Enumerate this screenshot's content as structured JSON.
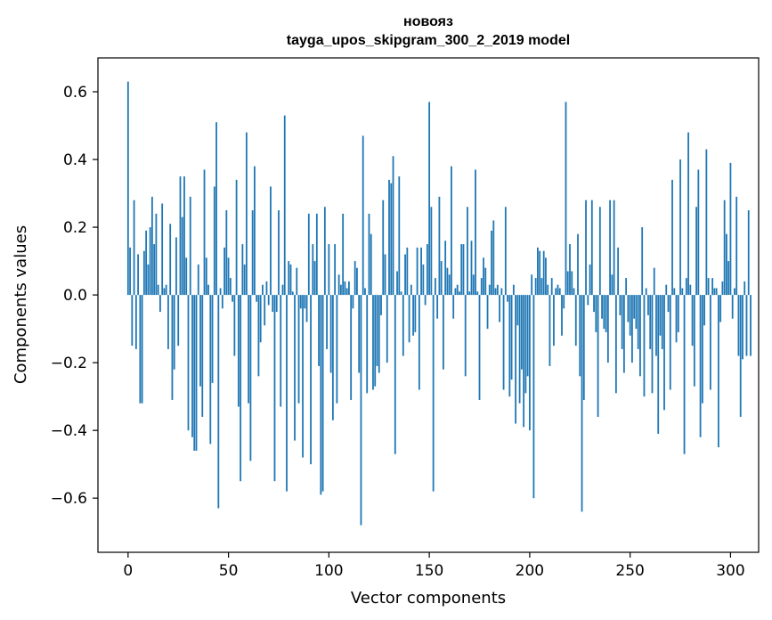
{
  "chart_data": {
    "type": "bar",
    "title": "новояз",
    "subtitle": "tayga_upos_skipgram_300_2_2019 model",
    "xlabel": "Vector components",
    "ylabel": "Components values",
    "xlim": [
      -15,
      314
    ],
    "ylim": [
      -0.76,
      0.7
    ],
    "xticks": [
      0,
      50,
      100,
      150,
      200,
      250,
      300
    ],
    "xtick_labels": [
      "0",
      "50",
      "100",
      "150",
      "200",
      "250",
      "300"
    ],
    "yticks": [
      -0.6,
      -0.4,
      -0.2,
      0.0,
      0.2,
      0.4,
      0.6
    ],
    "ytick_labels": [
      "−0.6",
      "−0.4",
      "−0.2",
      "0.0",
      "0.2",
      "0.4",
      "0.6"
    ],
    "bar_color": "#1f77b4",
    "grid": false,
    "values": [
      0.63,
      0.14,
      -0.15,
      0.28,
      -0.16,
      0.12,
      -0.32,
      -0.32,
      0.13,
      0.19,
      0.09,
      0.2,
      0.29,
      0.15,
      0.24,
      0.03,
      -0.05,
      0.27,
      0.02,
      0.03,
      -0.16,
      0.21,
      -0.31,
      -0.22,
      0.17,
      -0.15,
      0.35,
      0.23,
      0.35,
      0.11,
      -0.4,
      0.29,
      -0.42,
      -0.46,
      -0.46,
      0.09,
      -0.27,
      -0.36,
      0.37,
      0.11,
      0.03,
      -0.44,
      -0.26,
      0.32,
      0.51,
      -0.63,
      0.02,
      -0.04,
      0.14,
      0.25,
      0.11,
      0.05,
      -0.02,
      -0.18,
      0.34,
      -0.33,
      -0.55,
      0.15,
      0.09,
      0.48,
      -0.32,
      -0.49,
      0.25,
      0.38,
      -0.02,
      -0.24,
      -0.14,
      0.03,
      -0.09,
      0.04,
      -0.03,
      0.32,
      -0.05,
      -0.55,
      -0.05,
      0.25,
      -0.33,
      0.03,
      0.53,
      -0.58,
      0.1,
      0.09,
      0.01,
      -0.43,
      0.08,
      -0.32,
      -0.04,
      -0.48,
      -0.04,
      -0.08,
      0.24,
      -0.5,
      0.15,
      0.1,
      0.24,
      -0.21,
      -0.59,
      -0.58,
      0.26,
      -0.16,
      0.15,
      -0.23,
      -0.37,
      0.15,
      -0.32,
      0.06,
      0.03,
      0.24,
      0.04,
      0.02,
      0.04,
      -0.31,
      -0.04,
      0.1,
      0.08,
      -0.23,
      -0.68,
      0.47,
      0.02,
      -0.29,
      0.24,
      0.18,
      -0.28,
      -0.27,
      -0.21,
      -0.23,
      -0.06,
      0.28,
      0.12,
      -0.2,
      0.34,
      0.33,
      0.41,
      -0.47,
      0.07,
      0.35,
      0.01,
      -0.18,
      0.12,
      0.14,
      -0.14,
      0.03,
      -0.12,
      -0.11,
      0.14,
      -0.28,
      0.14,
      0.09,
      -0.03,
      0.15,
      0.57,
      0.26,
      -0.58,
      0.05,
      -0.07,
      0.29,
      0.1,
      -0.22,
      0.16,
      0.08,
      0.06,
      0.38,
      -0.07,
      0.02,
      0.03,
      0.01,
      0.15,
      0.15,
      -0.24,
      0.26,
      0.01,
      0.16,
      0.06,
      0.37,
      0.01,
      -0.31,
      0.05,
      0.11,
      0.08,
      -0.1,
      0.03,
      0.19,
      0.22,
      0.02,
      0.03,
      -0.08,
      0.02,
      -0.28,
      0.26,
      -0.02,
      -0.3,
      -0.25,
      0.03,
      -0.38,
      -0.09,
      -0.32,
      -0.22,
      -0.39,
      -0.29,
      -0.24,
      -0.4,
      0.06,
      -0.6,
      0.05,
      0.14,
      0.13,
      0.05,
      0.13,
      0.11,
      0.03,
      -0.21,
      0.05,
      -0.15,
      0.02,
      0.03,
      0.02,
      -0.12,
      -0.04,
      0.57,
      0.07,
      0.15,
      0.07,
      0.02,
      -0.15,
      0.18,
      -0.24,
      -0.64,
      -0.31,
      0.28,
      -0.03,
      0.09,
      0.28,
      -0.05,
      -0.11,
      -0.36,
      0.26,
      -0.07,
      -0.1,
      -0.11,
      -0.2,
      0.28,
      0.06,
      0.28,
      -0.29,
      0.14,
      -0.06,
      -0.16,
      -0.23,
      0.05,
      -0.08,
      -0.12,
      -0.2,
      -0.07,
      -0.1,
      -0.16,
      -0.24,
      0.2,
      -0.3,
      0.02,
      -0.06,
      -0.16,
      -0.29,
      0.08,
      -0.18,
      -0.41,
      -0.12,
      -0.16,
      -0.34,
      0.03,
      -0.05,
      -0.28,
      0.34,
      0.02,
      -0.14,
      -0.11,
      0.4,
      0.02,
      -0.47,
      0.05,
      0.48,
      0.03,
      -0.15,
      -0.27,
      0.26,
      0.37,
      -0.42,
      -0.32,
      -0.09,
      0.43,
      0.05,
      -0.28,
      0.05,
      0.02,
      0.02,
      -0.45,
      -0.08,
      0.04,
      0.28,
      0.18,
      0.1,
      0.39,
      -0.07,
      0.02,
      0.29,
      -0.18,
      -0.36,
      -0.19,
      0.04,
      -0.18,
      0.25,
      -0.18
    ]
  }
}
